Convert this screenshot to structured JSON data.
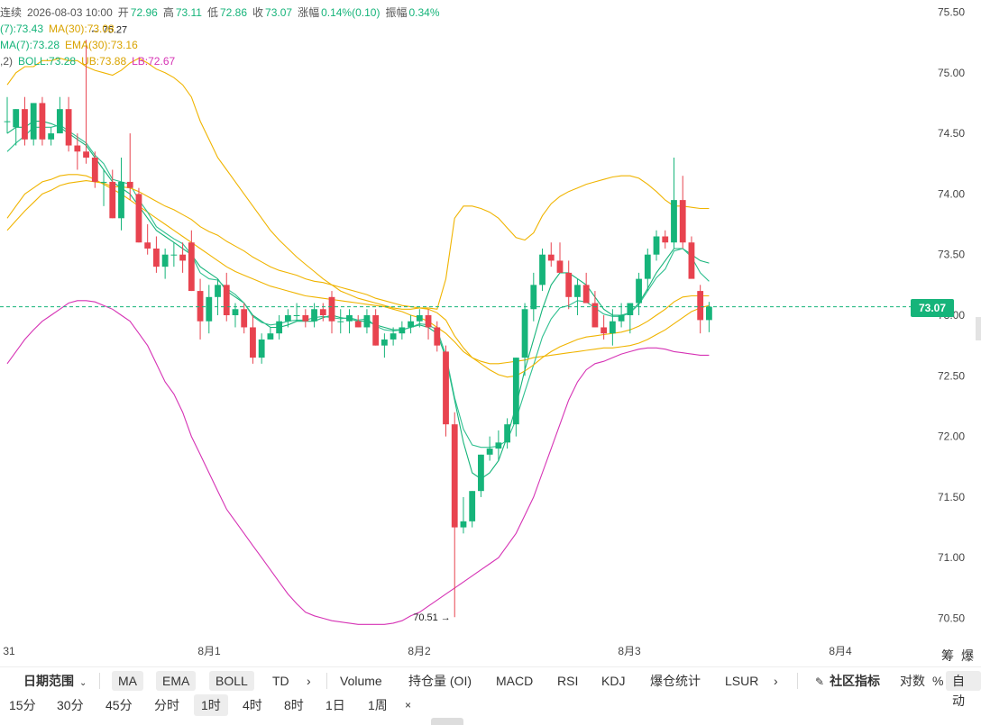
{
  "ohlc_bar": {
    "prefix": "连续",
    "date": "2026-08-03 10:00",
    "open_label": "开",
    "open": "72.96",
    "high_label": "高",
    "high": "73.11",
    "low_label": "低",
    "low": "72.86",
    "close_label": "收",
    "close": "73.07",
    "change_label": "涨幅",
    "change": "0.14%(0.10)",
    "amplitude_label": "振幅",
    "amplitude": "0.34%"
  },
  "ma_line": {
    "ma7": "(7):73.43",
    "ma30": "MA(30):73.08"
  },
  "ema_line": {
    "ema7": "MA(7):73.28",
    "ema30": "EMA(30):73.16"
  },
  "boll_line": {
    "params": ",2)",
    "boll": "BOLL:73.28",
    "ub": "UB:73.88",
    "lb": "LB:72.67"
  },
  "current_price": "73.07",
  "annotations": {
    "high_label": "75.27",
    "low_label": "70.51"
  },
  "colors": {
    "up": "#16b47a",
    "down": "#e8434f",
    "ma": "#16b47a",
    "ema": "#f0b400",
    "lb": "#d633b5",
    "ub": "#f0b400"
  },
  "chart_data": {
    "type": "candlestick",
    "y_ticks": [
      "75.50",
      "75.00",
      "74.50",
      "74.00",
      "73.50",
      "73.00",
      "72.50",
      "72.00",
      "71.50",
      "71.00",
      "70.50"
    ],
    "ylim": [
      70.4,
      75.6
    ],
    "x_ticks": [
      "31",
      "8月1",
      "8月2",
      "8月3",
      "8月4"
    ],
    "candles": [
      [
        74.6,
        74.8,
        74.5,
        74.6
      ],
      [
        74.55,
        74.7,
        74.4,
        74.7
      ],
      [
        74.7,
        74.8,
        74.4,
        74.45
      ],
      [
        74.45,
        74.75,
        74.4,
        74.75
      ],
      [
        74.75,
        74.8,
        74.4,
        74.45
      ],
      [
        74.45,
        74.55,
        74.4,
        74.5
      ],
      [
        74.5,
        74.8,
        74.5,
        74.7
      ],
      [
        74.7,
        74.8,
        74.35,
        74.4
      ],
      [
        74.4,
        74.5,
        74.2,
        74.35
      ],
      [
        74.35,
        75.27,
        74.25,
        74.3
      ],
      [
        74.3,
        74.35,
        74.05,
        74.1
      ],
      [
        74.1,
        74.2,
        73.9,
        74.1
      ],
      [
        74.1,
        74.2,
        73.8,
        73.8
      ],
      [
        73.8,
        74.3,
        73.7,
        74.1
      ],
      [
        74.1,
        74.5,
        73.95,
        74.05
      ],
      [
        74.0,
        74.05,
        73.6,
        73.6
      ],
      [
        73.6,
        73.75,
        73.5,
        73.55
      ],
      [
        73.55,
        73.65,
        73.35,
        73.4
      ],
      [
        73.4,
        73.55,
        73.3,
        73.5
      ],
      [
        73.5,
        73.6,
        73.4,
        73.5
      ],
      [
        73.5,
        73.6,
        73.35,
        73.45
      ],
      [
        73.6,
        73.7,
        73.2,
        73.2
      ],
      [
        73.2,
        73.3,
        72.8,
        72.95
      ],
      [
        72.95,
        73.25,
        72.85,
        73.15
      ],
      [
        73.15,
        73.3,
        73.0,
        73.25
      ],
      [
        73.25,
        73.35,
        72.95,
        73.0
      ],
      [
        73.0,
        73.1,
        72.9,
        73.05
      ],
      [
        73.05,
        73.1,
        72.85,
        72.9
      ],
      [
        72.9,
        73.0,
        72.6,
        72.65
      ],
      [
        72.65,
        72.85,
        72.6,
        72.8
      ],
      [
        72.8,
        72.9,
        72.8,
        72.85
      ],
      [
        72.85,
        73.0,
        72.8,
        72.95
      ],
      [
        72.95,
        73.05,
        72.9,
        73.0
      ],
      [
        73.0,
        73.1,
        72.95,
        73.0
      ],
      [
        73.0,
        73.05,
        72.9,
        72.95
      ],
      [
        72.95,
        73.1,
        72.9,
        73.05
      ],
      [
        73.05,
        73.1,
        72.95,
        73.0
      ],
      [
        73.15,
        73.2,
        72.85,
        72.95
      ],
      [
        72.95,
        73.05,
        72.85,
        72.95
      ],
      [
        72.95,
        73.05,
        72.85,
        73.0
      ],
      [
        72.95,
        73.0,
        72.9,
        72.9
      ],
      [
        72.9,
        73.05,
        72.85,
        73.0
      ],
      [
        73.0,
        73.05,
        72.75,
        72.75
      ],
      [
        72.75,
        72.85,
        72.65,
        72.8
      ],
      [
        72.8,
        72.9,
        72.75,
        72.85
      ],
      [
        72.85,
        72.95,
        72.8,
        72.9
      ],
      [
        72.9,
        73.0,
        72.85,
        72.95
      ],
      [
        72.95,
        73.05,
        72.9,
        73.0
      ],
      [
        73.0,
        73.05,
        72.8,
        72.9
      ],
      [
        72.9,
        72.95,
        72.7,
        72.75
      ],
      [
        72.7,
        72.75,
        72.0,
        72.1
      ],
      [
        72.1,
        72.2,
        70.51,
        71.25
      ],
      [
        71.25,
        71.5,
        71.2,
        71.3
      ],
      [
        71.3,
        71.55,
        71.25,
        71.55
      ],
      [
        71.55,
        71.85,
        71.5,
        71.85
      ],
      [
        71.85,
        72.0,
        71.8,
        71.9
      ],
      [
        71.9,
        72.05,
        71.8,
        71.95
      ],
      [
        71.95,
        72.15,
        71.9,
        72.1
      ],
      [
        72.1,
        72.65,
        72.0,
        72.65
      ],
      [
        72.65,
        73.1,
        72.5,
        73.05
      ],
      [
        73.05,
        73.35,
        72.95,
        73.25
      ],
      [
        73.25,
        73.55,
        73.2,
        73.5
      ],
      [
        73.5,
        73.6,
        73.4,
        73.45
      ],
      [
        73.45,
        73.6,
        73.35,
        73.35
      ],
      [
        73.35,
        73.45,
        73.05,
        73.15
      ],
      [
        73.15,
        73.3,
        73.0,
        73.25
      ],
      [
        73.25,
        73.35,
        73.1,
        73.1
      ],
      [
        73.1,
        73.2,
        72.9,
        72.9
      ],
      [
        72.9,
        73.0,
        72.8,
        72.85
      ],
      [
        72.85,
        73.05,
        72.75,
        72.95
      ],
      [
        72.95,
        73.1,
        72.9,
        73.0
      ],
      [
        73.0,
        73.1,
        72.85,
        73.1
      ],
      [
        73.1,
        73.35,
        73.0,
        73.3
      ],
      [
        73.3,
        73.55,
        73.2,
        73.5
      ],
      [
        73.5,
        73.7,
        73.45,
        73.65
      ],
      [
        73.65,
        73.7,
        73.55,
        73.6
      ],
      [
        73.6,
        74.3,
        73.55,
        73.95
      ],
      [
        73.95,
        74.15,
        73.55,
        73.6
      ],
      [
        73.6,
        73.65,
        73.35,
        73.3
      ],
      [
        73.2,
        73.25,
        72.85,
        72.96
      ],
      [
        72.96,
        73.11,
        72.86,
        73.07
      ]
    ],
    "series": [
      {
        "name": "MA7",
        "color": "#16b47a",
        "values": [
          74.5,
          74.55,
          74.55,
          74.6,
          74.6,
          74.58,
          74.55,
          74.5,
          74.45,
          74.4,
          74.3,
          74.2,
          74.1,
          74.05,
          74.0,
          73.9,
          73.8,
          73.7,
          73.65,
          73.6,
          73.55,
          73.5,
          73.4,
          73.35,
          73.3,
          73.2,
          73.15,
          73.1,
          73.0,
          72.95,
          72.9,
          72.9,
          72.92,
          72.95,
          72.95,
          72.95,
          72.98,
          73.0,
          72.98,
          72.97,
          72.95,
          72.95,
          72.92,
          72.9,
          72.88,
          72.88,
          72.9,
          72.92,
          72.9,
          72.85,
          72.65,
          72.3,
          71.95,
          71.7,
          71.65,
          71.7,
          71.8,
          72.0,
          72.25,
          72.55,
          72.8,
          73.05,
          73.25,
          73.35,
          73.35,
          73.3,
          73.25,
          73.15,
          73.05,
          73.0,
          73.0,
          73.02,
          73.1,
          73.22,
          73.35,
          73.45,
          73.55,
          73.55,
          73.5,
          73.45,
          73.43
        ]
      },
      {
        "name": "MA30",
        "color": "#f0b400",
        "values": [
          73.8,
          73.9,
          74.0,
          74.05,
          74.1,
          74.12,
          74.15,
          74.16,
          74.16,
          74.15,
          74.12,
          74.08,
          74.04,
          74.0,
          73.95,
          73.9,
          73.85,
          73.8,
          73.75,
          73.7,
          73.65,
          73.6,
          73.55,
          73.5,
          73.45,
          73.4,
          73.36,
          73.33,
          73.3,
          73.27,
          73.24,
          73.22,
          73.2,
          73.18,
          73.16,
          73.15,
          73.14,
          73.13,
          73.12,
          73.11,
          73.1,
          73.09,
          73.08,
          73.07,
          73.05,
          73.03,
          73.0,
          72.98,
          72.95,
          72.9,
          72.85,
          72.78,
          72.7,
          72.65,
          72.62,
          72.6,
          72.6,
          72.61,
          72.62,
          72.63,
          72.65,
          72.66,
          72.67,
          72.68,
          72.69,
          72.7,
          72.71,
          72.72,
          72.73,
          72.73,
          72.74,
          72.75,
          72.77,
          72.8,
          72.84,
          72.88,
          72.93,
          72.98,
          73.03,
          73.06,
          73.08
        ]
      },
      {
        "name": "EMA7",
        "color": "#2fc090",
        "values": [
          74.35,
          74.42,
          74.48,
          74.55,
          74.55,
          74.55,
          74.57,
          74.52,
          74.47,
          74.42,
          74.32,
          74.25,
          74.12,
          74.1,
          74.08,
          73.95,
          73.85,
          73.73,
          73.68,
          73.63,
          73.59,
          73.5,
          73.35,
          73.3,
          73.29,
          73.22,
          73.17,
          73.1,
          72.99,
          72.94,
          72.92,
          72.93,
          72.95,
          72.96,
          72.96,
          72.98,
          72.99,
          72.98,
          72.97,
          72.98,
          72.96,
          72.97,
          72.91,
          72.88,
          72.87,
          72.88,
          72.9,
          72.93,
          72.92,
          72.88,
          72.67,
          72.32,
          72.06,
          71.93,
          71.91,
          71.91,
          71.92,
          71.97,
          72.14,
          72.37,
          72.59,
          72.82,
          72.97,
          73.06,
          73.08,
          73.12,
          73.11,
          73.06,
          73.01,
          72.99,
          72.99,
          73.02,
          73.09,
          73.2,
          73.31,
          73.38,
          73.53,
          73.55,
          73.48,
          73.35,
          73.28
        ]
      },
      {
        "name": "EMA30",
        "color": "#f0b400",
        "values": [
          73.7,
          73.78,
          73.86,
          73.93,
          74.0,
          74.03,
          74.07,
          74.09,
          74.1,
          74.11,
          74.1,
          74.09,
          74.06,
          74.06,
          74.05,
          74.02,
          73.98,
          73.94,
          73.9,
          73.87,
          73.83,
          73.79,
          73.73,
          73.69,
          73.66,
          73.61,
          73.57,
          73.53,
          73.48,
          73.44,
          73.4,
          73.37,
          73.35,
          73.33,
          73.3,
          73.28,
          73.27,
          73.25,
          73.23,
          73.21,
          73.19,
          73.17,
          73.14,
          73.12,
          73.1,
          73.08,
          73.07,
          73.06,
          73.05,
          73.02,
          72.96,
          72.83,
          72.73,
          72.65,
          72.6,
          72.55,
          72.51,
          72.49,
          72.5,
          72.54,
          72.59,
          72.65,
          72.7,
          72.74,
          72.77,
          72.8,
          72.82,
          72.83,
          72.84,
          72.85,
          72.86,
          72.88,
          72.91,
          72.95,
          73.0,
          73.05,
          73.11,
          73.15,
          73.16,
          73.16,
          73.16
        ]
      },
      {
        "name": "UB",
        "color": "#f0b400",
        "values": [
          74.9,
          75.0,
          75.05,
          75.05,
          75.1,
          75.1,
          75.12,
          75.1,
          75.1,
          75.05,
          75.02,
          75.0,
          74.98,
          75.02,
          75.08,
          75.12,
          75.08,
          75.03,
          75.0,
          74.96,
          74.9,
          74.8,
          74.6,
          74.45,
          74.3,
          74.2,
          74.1,
          74.0,
          73.9,
          73.8,
          73.7,
          73.62,
          73.55,
          73.48,
          73.42,
          73.36,
          73.3,
          73.25,
          73.2,
          73.17,
          73.14,
          73.12,
          73.1,
          73.08,
          73.06,
          73.05,
          73.05,
          73.06,
          73.06,
          73.05,
          73.3,
          73.8,
          73.9,
          73.9,
          73.88,
          73.85,
          73.8,
          73.72,
          73.64,
          73.62,
          73.68,
          73.82,
          73.92,
          73.98,
          74.02,
          74.05,
          74.08,
          74.1,
          74.12,
          74.14,
          74.15,
          74.15,
          74.13,
          74.08,
          74.02,
          73.95,
          73.9,
          73.9,
          73.89,
          73.88,
          73.88
        ]
      },
      {
        "name": "LB",
        "color": "#d633b5",
        "values": [
          72.6,
          72.7,
          72.8,
          72.88,
          72.95,
          73.0,
          73.05,
          73.1,
          73.12,
          73.12,
          73.11,
          73.08,
          73.05,
          73.0,
          72.95,
          72.85,
          72.75,
          72.6,
          72.45,
          72.35,
          72.2,
          72.0,
          71.85,
          71.7,
          71.55,
          71.4,
          71.3,
          71.2,
          71.1,
          71.0,
          70.9,
          70.8,
          70.7,
          70.62,
          70.55,
          70.52,
          70.5,
          70.48,
          70.47,
          70.46,
          70.45,
          70.45,
          70.45,
          70.45,
          70.46,
          70.48,
          70.52,
          70.55,
          70.6,
          70.65,
          70.7,
          70.75,
          70.8,
          70.85,
          70.9,
          70.95,
          71.0,
          71.1,
          71.2,
          71.35,
          71.5,
          71.7,
          71.9,
          72.1,
          72.3,
          72.45,
          72.55,
          72.6,
          72.62,
          72.65,
          72.68,
          72.7,
          72.72,
          72.73,
          72.73,
          72.72,
          72.7,
          72.69,
          72.68,
          72.67,
          72.67
        ]
      }
    ]
  },
  "toolbar": {
    "date_range": "日期范围",
    "indicators": [
      "MA",
      "EMA",
      "BOLL",
      "TD"
    ],
    "more_arrow_1": "›",
    "panels": [
      "Volume",
      "持仓量 (OI)",
      "MACD",
      "RSI",
      "KDJ",
      "爆仓统计",
      "LSUR"
    ],
    "more_arrow_2": "›",
    "community": "社区指标",
    "log": "对数",
    "percent": "%",
    "auto": "自动",
    "right_top_1": "筹",
    "right_top_2": "爆"
  },
  "intervals": {
    "items": [
      "15分",
      "30分",
      "45分",
      "分时",
      "1时",
      "4时",
      "8时",
      "1日",
      "1周"
    ],
    "selected": "1时",
    "close": "×"
  }
}
